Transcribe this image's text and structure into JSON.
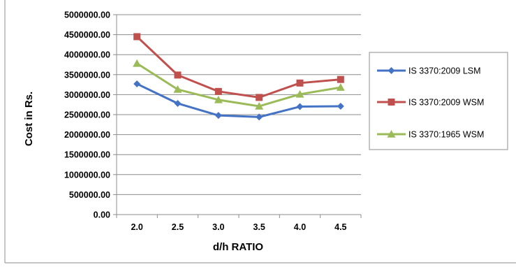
{
  "chart_data": {
    "type": "line",
    "title": "",
    "xlabel": "d/h RATIO",
    "ylabel": "Cost in Rs.",
    "categories": [
      "2.0",
      "2.5",
      "3.0",
      "3.5",
      "4.0",
      "4.5"
    ],
    "ylim": [
      0,
      5000000
    ],
    "y_ticks": [
      "0.00",
      "500000.00",
      "1000000.00",
      "1500000.00",
      "2000000.00",
      "2500000.00",
      "3000000.00",
      "3500000.00",
      "4000000.00",
      "4500000.00",
      "5000000.00"
    ],
    "grid": "horizontal major",
    "legend_position": "right",
    "series": [
      {
        "name": "IS 3370:2009 LSM",
        "color": "#4472C4",
        "marker": "diamond",
        "values": [
          3270000,
          2780000,
          2480000,
          2440000,
          2700000,
          2710000
        ]
      },
      {
        "name": "IS 3370:2009 WSM",
        "color": "#C0504D",
        "marker": "square",
        "values": [
          4450000,
          3490000,
          3080000,
          2930000,
          3290000,
          3380000
        ]
      },
      {
        "name": "IS 3370:1965 WSM",
        "color": "#9BBB59",
        "marker": "triangle",
        "values": [
          3780000,
          3130000,
          2870000,
          2710000,
          3010000,
          3180000
        ]
      }
    ]
  }
}
